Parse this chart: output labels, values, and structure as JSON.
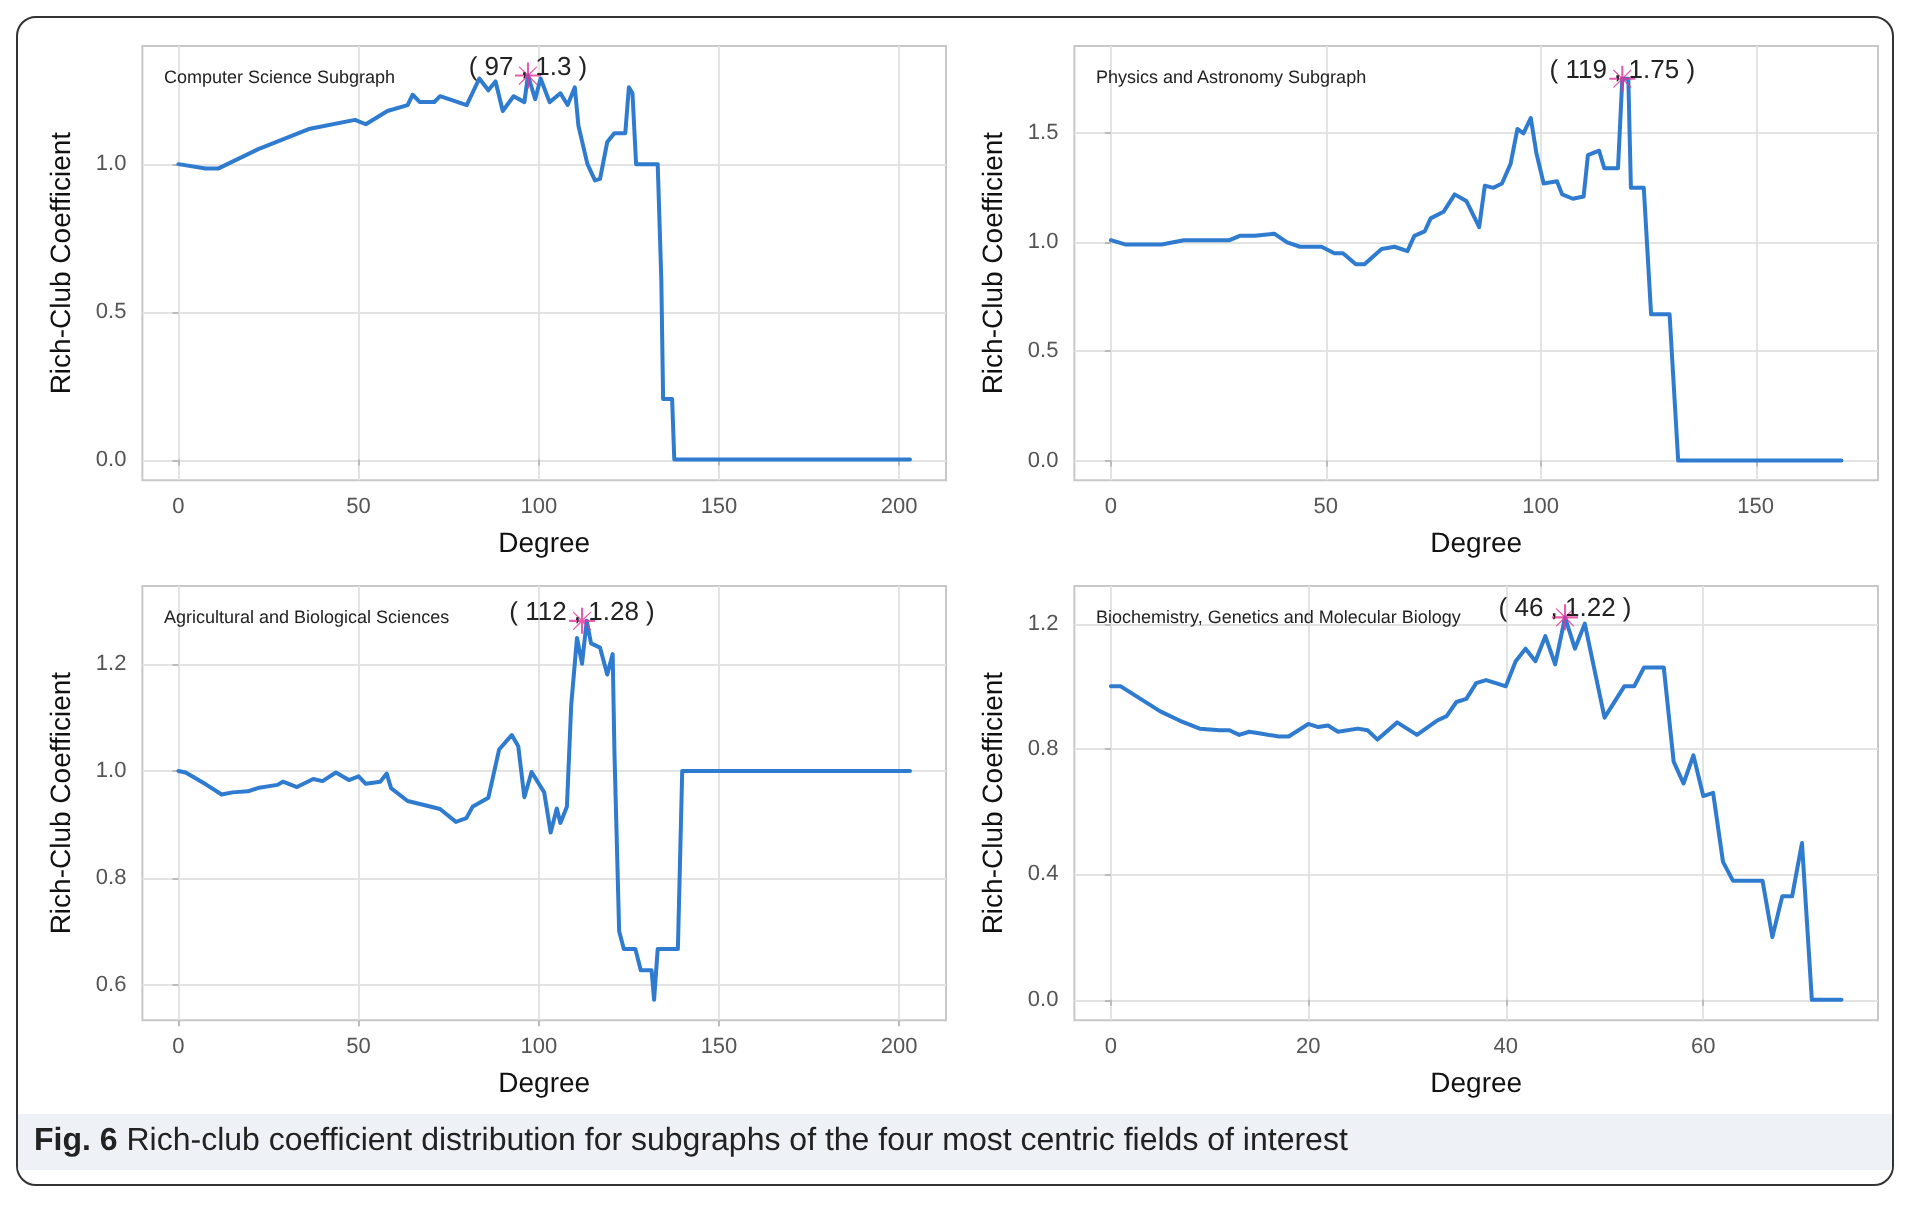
{
  "chart_data": [
    {
      "type": "line",
      "title": "Computer Science Subgraph",
      "xlabel": "Degree",
      "ylabel": "Rich-Club Coefficient",
      "xlim": [
        -10,
        213
      ],
      "ylim": [
        -0.07,
        1.4
      ],
      "xticks": [
        0,
        50,
        100,
        150,
        200
      ],
      "yticks": [
        {
          "value": 0,
          "label": "0.0"
        },
        {
          "value": 0.5,
          "label": "0.5"
        },
        {
          "value": 1,
          "label": "1.0"
        }
      ],
      "grid": true,
      "marker": "none",
      "line_style": "solid",
      "annotations": [
        {
          "text": "( 97 , 1.3 )",
          "x": 97,
          "y": 1.3
        }
      ],
      "series": [
        {
          "type": "line",
          "color": "#2e7bcf",
          "x": [
            0,
            7.6,
            11,
            22,
            36.5,
            49,
            52,
            58,
            63.6,
            65,
            67,
            71,
            72.6,
            80,
            83.5,
            86,
            88,
            90,
            93,
            96,
            97,
            99,
            100.5,
            103,
            106,
            108,
            110,
            111,
            113.5,
            115.6,
            117,
            119,
            121,
            124,
            125,
            126,
            127,
            133,
            134,
            134.5,
            137,
            137.6,
            203
          ],
          "values": [
            1.0,
            0.985,
            0.985,
            1.05,
            1.12,
            1.15,
            1.135,
            1.18,
            1.2,
            1.235,
            1.21,
            1.21,
            1.23,
            1.2,
            1.29,
            1.25,
            1.28,
            1.18,
            1.23,
            1.21,
            1.3,
            1.22,
            1.29,
            1.21,
            1.24,
            1.2,
            1.26,
            1.13,
            1.0,
            0.945,
            0.95,
            1.075,
            1.105,
            1.105,
            1.26,
            1.24,
            1.0,
            1.0,
            0.61,
            0.205,
            0.205,
            0,
            0
          ]
        },
        {
          "type": "scatter",
          "color": "#e0359a",
          "marker": "cross",
          "x": [
            97
          ],
          "values": [
            1.3
          ]
        }
      ]
    },
    {
      "type": "line",
      "title": "Physics and Astronomy Subgraph",
      "xlabel": "Degree",
      "ylabel": "Rich-Club Coefficient",
      "xlim": [
        -8.5,
        178.5
      ],
      "ylim": [
        -0.09,
        1.9
      ],
      "xticks": [
        0,
        50,
        100,
        150
      ],
      "yticks": [
        {
          "value": 0,
          "label": "0.0"
        },
        {
          "value": 0.5,
          "label": "0.5"
        },
        {
          "value": 1,
          "label": "1.0"
        },
        {
          "value": 1.5,
          "label": "1.5"
        }
      ],
      "grid": true,
      "marker": "none",
      "line_style": "solid",
      "annotations": [
        {
          "text": "( 119 , 1.75 )",
          "x": 119,
          "y": 1.75
        }
      ],
      "series": [
        {
          "type": "line",
          "color": "#2e7bcf",
          "x": [
            0,
            3.5,
            11.8,
            17,
            27.6,
            30,
            33.5,
            38,
            41,
            44,
            49,
            52,
            54,
            57,
            59,
            63,
            66,
            69,
            70.6,
            73,
            74.4,
            77.4,
            80,
            82.7,
            85.7,
            87,
            89,
            91,
            93,
            94.6,
            96,
            97.7,
            99,
            100.7,
            103.8,
            105,
            107.5,
            110,
            111,
            113.6,
            114.8,
            118,
            119,
            120.4,
            121,
            124,
            125.7,
            130,
            132,
            170
          ],
          "values": [
            1.01,
            0.99,
            0.99,
            1.01,
            1.01,
            1.03,
            1.03,
            1.04,
            1.0,
            0.98,
            0.98,
            0.95,
            0.95,
            0.9,
            0.9,
            0.97,
            0.98,
            0.96,
            1.03,
            1.05,
            1.11,
            1.14,
            1.22,
            1.19,
            1.07,
            1.26,
            1.25,
            1.27,
            1.36,
            1.52,
            1.5,
            1.57,
            1.41,
            1.27,
            1.28,
            1.22,
            1.2,
            1.21,
            1.4,
            1.42,
            1.34,
            1.34,
            1.75,
            1.75,
            1.25,
            1.25,
            0.67,
            0.67,
            0,
            0
          ]
        },
        {
          "type": "scatter",
          "color": "#e0359a",
          "marker": "cross",
          "x": [
            119
          ],
          "values": [
            1.75
          ]
        }
      ]
    },
    {
      "type": "line",
      "title": "Agricultural and Biological Sciences",
      "xlabel": "Degree",
      "ylabel": "Rich-Club Coefficient",
      "xlim": [
        -10,
        213
      ],
      "ylim": [
        0.535,
        1.345
      ],
      "xticks": [
        0,
        50,
        100,
        150,
        200
      ],
      "yticks": [
        {
          "value": 0.6,
          "label": "0.6"
        },
        {
          "value": 0.8,
          "label": "0.8"
        },
        {
          "value": 1,
          "label": "1.0"
        },
        {
          "value": 1.2,
          "label": "1.2"
        }
      ],
      "grid": true,
      "marker": "none",
      "line_style": "solid",
      "annotations": [
        {
          "text": "( 112 , 1.28 )",
          "x": 112,
          "y": 1.28
        }
      ],
      "series": [
        {
          "type": "line",
          "color": "#2e7bcf",
          "x": [
            0,
            2,
            7.6,
            12,
            15,
            19.3,
            22,
            27.5,
            29,
            32.9,
            37.4,
            40,
            43.7,
            47.3,
            50,
            52,
            56,
            57.8,
            59,
            63.6,
            69,
            72.6,
            77,
            79.9,
            81.6,
            86,
            89,
            92.5,
            94.3,
            96,
            98,
            101.5,
            103.3,
            105,
            106,
            107.8,
            109,
            110.6,
            112,
            113.3,
            114.5,
            117,
            119,
            120.5,
            121,
            122.3,
            123.6,
            126.8,
            128.3,
            131.3,
            132,
            133,
            138.6,
            139.8,
            203
          ],
          "values": [
            1.0,
            0.997,
            0.975,
            0.956,
            0.96,
            0.962,
            0.968,
            0.974,
            0.98,
            0.97,
            0.985,
            0.981,
            0.997,
            0.983,
            0.99,
            0.976,
            0.98,
            0.995,
            0.968,
            0.944,
            0.935,
            0.929,
            0.905,
            0.912,
            0.933,
            0.95,
            1.04,
            1.067,
            1.046,
            0.951,
            0.998,
            0.96,
            0.885,
            0.93,
            0.903,
            0.933,
            1.123,
            1.248,
            1.2,
            1.28,
            1.238,
            1.23,
            1.18,
            1.218,
            1.034,
            0.701,
            0.668,
            0.668,
            0.628,
            0.628,
            0.573,
            0.668,
            0.668,
            1.0,
            1.0
          ]
        },
        {
          "type": "scatter",
          "color": "#e0359a",
          "marker": "cross",
          "x": [
            112
          ],
          "values": [
            1.28
          ]
        }
      ]
    },
    {
      "type": "line",
      "title": "Biochemistry, Genetics and Molecular Biology",
      "xlabel": "Degree",
      "ylabel": "Rich-Club Coefficient",
      "xlim": [
        -3.7,
        77.7
      ],
      "ylim": [
        -0.065,
        1.32
      ],
      "xticks": [
        0,
        20,
        40,
        60
      ],
      "yticks": [
        {
          "value": 0,
          "label": "0.0"
        },
        {
          "value": 0.4,
          "label": "0.4"
        },
        {
          "value": 0.8,
          "label": "0.8"
        },
        {
          "value": 1.2,
          "label": "1.2"
        }
      ],
      "grid": true,
      "marker": "none",
      "line_style": "solid",
      "annotations": [
        {
          "text": "( 46 , 1.22 )",
          "x": 46,
          "y": 1.22
        },
        "Fig. 6 Rich-club coefficient distribution for subgraphs of the four most centric fields of interest"
      ],
      "series": [
        {
          "type": "line",
          "color": "#2e7bcf",
          "x": [
            0,
            1,
            3,
            5,
            7,
            9,
            11,
            12,
            13,
            14,
            15,
            17,
            18,
            20,
            21,
            22,
            23,
            25,
            26,
            27,
            29,
            31,
            33,
            34,
            35,
            36,
            37,
            38,
            39,
            40,
            41,
            42,
            43,
            44,
            45,
            46,
            47,
            48,
            50,
            52,
            53,
            54,
            56,
            57,
            58,
            59,
            60,
            61,
            62,
            63,
            65,
            66,
            67,
            68,
            69,
            70,
            71,
            74
          ],
          "values": [
            1.0,
            1.0,
            0.96,
            0.92,
            0.89,
            0.865,
            0.86,
            0.86,
            0.845,
            0.855,
            0.85,
            0.84,
            0.84,
            0.88,
            0.87,
            0.875,
            0.855,
            0.865,
            0.86,
            0.83,
            0.885,
            0.845,
            0.89,
            0.905,
            0.95,
            0.96,
            1.01,
            1.02,
            1.01,
            1.0,
            1.08,
            1.12,
            1.08,
            1.16,
            1.07,
            1.22,
            1.12,
            1.2,
            0.9,
            1.0,
            1.0,
            1.06,
            1.06,
            0.76,
            0.69,
            0.78,
            0.65,
            0.66,
            0.44,
            0.38,
            0.38,
            0.38,
            0.2,
            0.33,
            0.33,
            0.5,
            0,
            0
          ]
        },
        {
          "type": "scatter",
          "color": "#e0359a",
          "marker": "cross",
          "x": [
            46
          ],
          "values": [
            1.22
          ]
        }
      ]
    }
  ]
}
